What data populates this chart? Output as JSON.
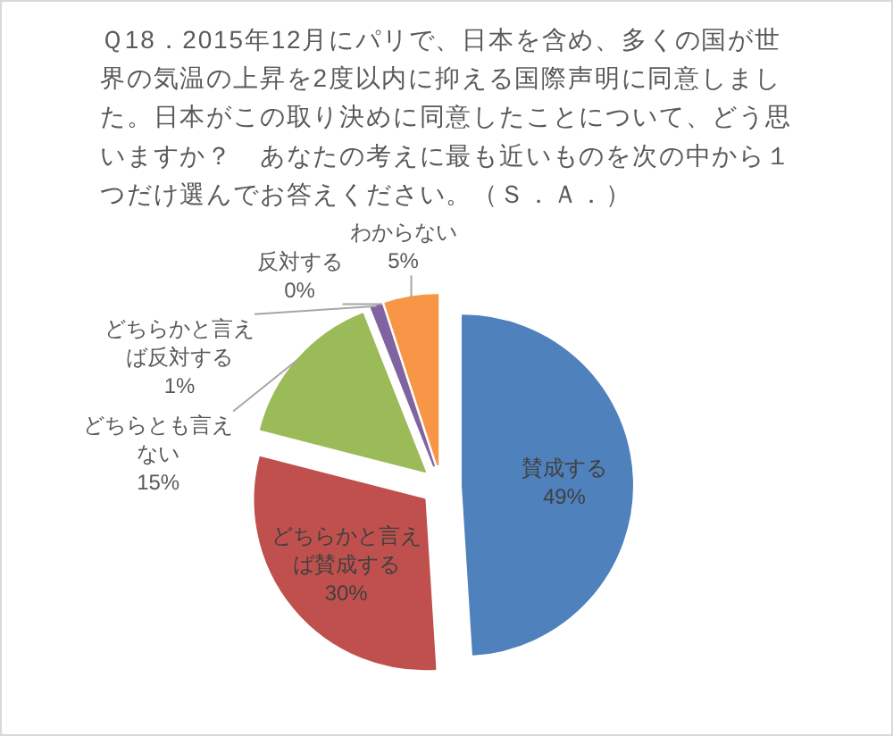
{
  "chart_data": {
    "type": "pie",
    "title": "Ｑ18．2015年12月にパリで、日本を含め、多くの国が世界の気温の上昇を2度以内に抑える国際声明に同意しました。日本がこの取り決めに同意したことについて、どう思いますか？　あなたの考えに最も近いものを次の中から１つだけ選んでお答えください。（Ｓ．Ａ．）",
    "categories": [
      "賛成する",
      "どちらかと言えば賛成する",
      "どちらとも言えない",
      "どちらかと言えば反対する",
      "反対する",
      "わからない"
    ],
    "values": [
      49,
      30,
      15,
      1,
      0,
      5
    ],
    "colors": [
      "#4f81bd",
      "#c0504d",
      "#9bbb59",
      "#8064a2",
      null,
      "#f79646"
    ],
    "value_labels": [
      "49%",
      "30%",
      "15%",
      "1%",
      "0%",
      "5%"
    ]
  }
}
